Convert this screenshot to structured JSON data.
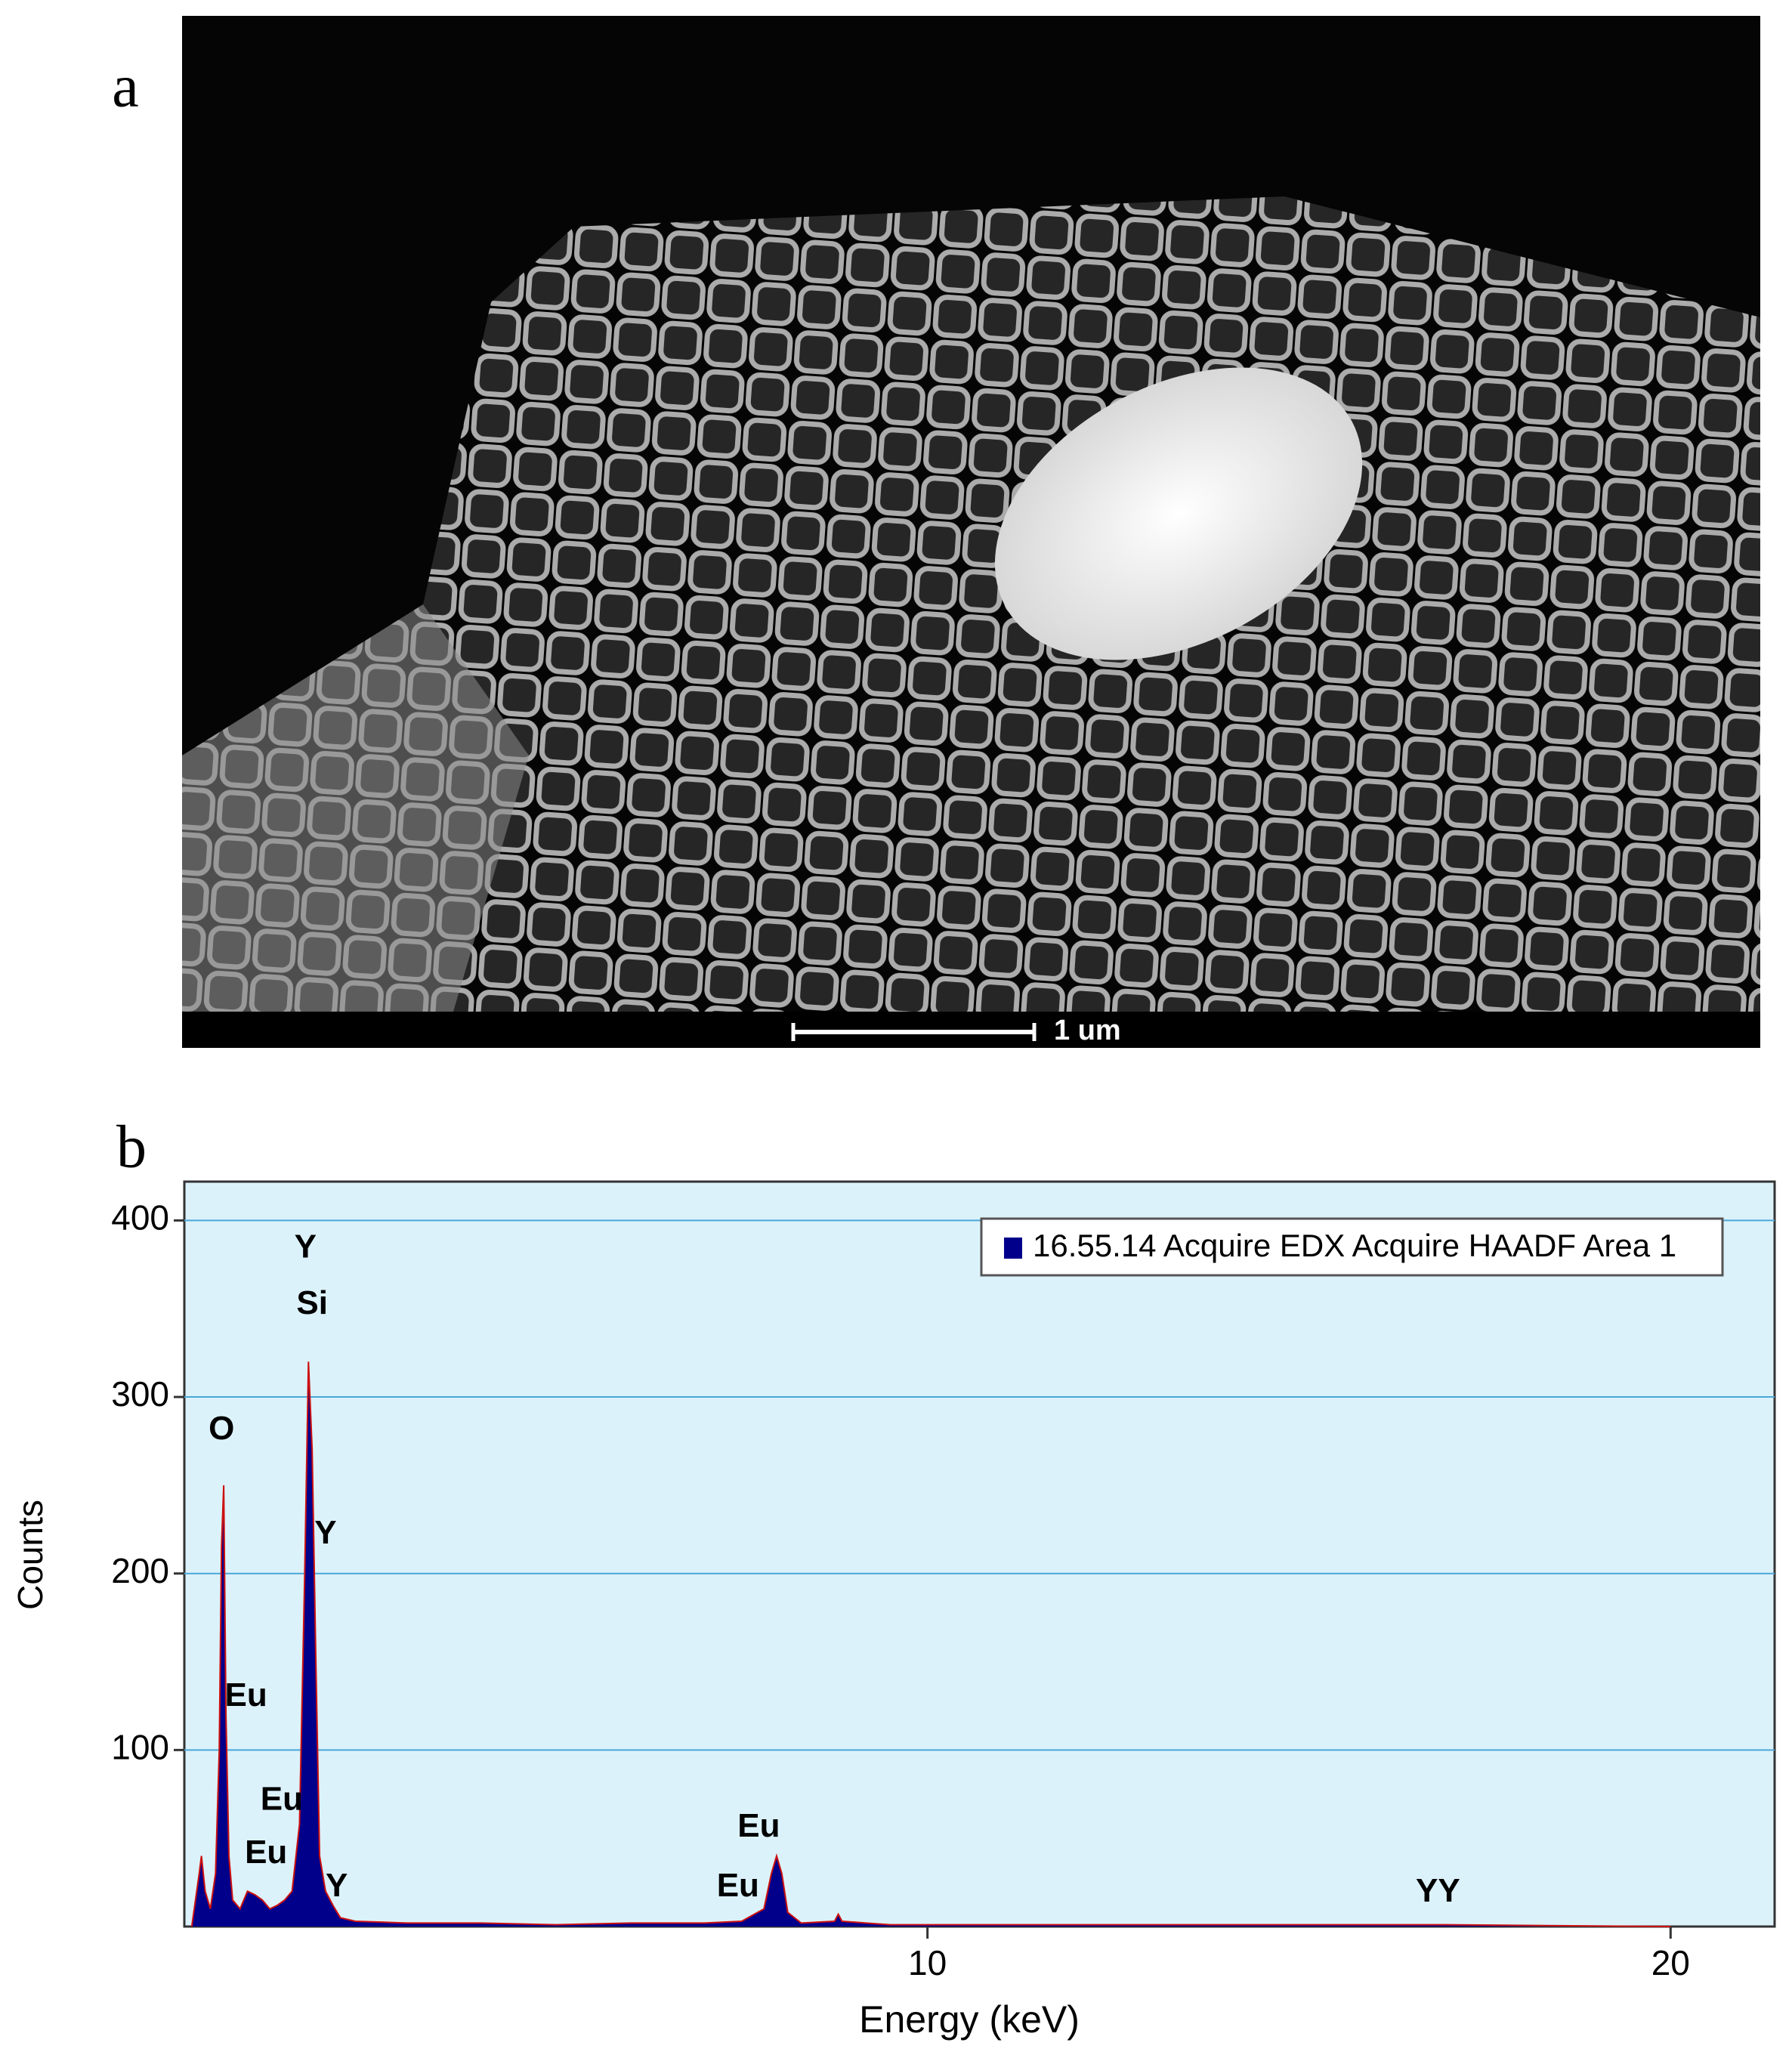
{
  "figure": {
    "panel_a": {
      "label": "a",
      "scale_bar": "1 um"
    }
  },
  "chart_data": {
    "type": "area",
    "panel_label": "b",
    "xlabel": "Energy (keV)",
    "ylabel": "Counts",
    "xlim": [
      0,
      21.4
    ],
    "ylim": [
      0,
      422
    ],
    "xticks": [
      10,
      20
    ],
    "yticks": [
      100,
      200,
      300,
      400
    ],
    "grid": true,
    "legend": "top-right",
    "x": [
      0.1,
      0.2,
      0.23,
      0.28,
      0.35,
      0.42,
      0.47,
      0.5,
      0.53,
      0.56,
      0.6,
      0.65,
      0.75,
      0.85,
      0.95,
      1.05,
      1.15,
      1.25,
      1.35,
      1.45,
      1.55,
      1.62,
      1.67,
      1.72,
      1.77,
      1.82,
      1.9,
      2.0,
      2.1,
      2.3,
      3,
      4,
      5,
      6,
      7,
      7.5,
      7.8,
      7.9,
      7.97,
      8.04,
      8.12,
      8.3,
      8.75,
      8.8,
      8.85,
      9.5,
      11,
      14,
      17,
      20
    ],
    "series": [
      {
        "name": "16.55.14 Acquire EDX Acquire HAADF Area 1",
        "color": "#00008b",
        "values": [
          0,
          30,
          40,
          20,
          10,
          30,
          100,
          215,
          250,
          120,
          40,
          15,
          10,
          20,
          18,
          15,
          10,
          12,
          15,
          20,
          58,
          200,
          320,
          270,
          150,
          40,
          20,
          12,
          5,
          3,
          2,
          2,
          1,
          2,
          2,
          3,
          10,
          30,
          40,
          30,
          8,
          2,
          3,
          7,
          3,
          1,
          1,
          1,
          1,
          0
        ]
      }
    ],
    "annotations": [
      {
        "text": "Y",
        "x": 1.63,
        "y": 384
      },
      {
        "text": "Si",
        "x": 1.72,
        "y": 352
      },
      {
        "text": "O",
        "x": 0.5,
        "y": 281
      },
      {
        "text": "Y",
        "x": 1.9,
        "y": 222
      },
      {
        "text": "Eu",
        "x": 0.83,
        "y": 130
      },
      {
        "text": "Eu",
        "x": 1.31,
        "y": 71
      },
      {
        "text": "Eu",
        "x": 1.1,
        "y": 41
      },
      {
        "text": "Y",
        "x": 2.05,
        "y": 22
      },
      {
        "text": "Eu",
        "x": 7.73,
        "y": 56
      },
      {
        "text": "Eu",
        "x": 7.45,
        "y": 22
      },
      {
        "text": "YY",
        "x": 16.87,
        "y": 19
      }
    ]
  }
}
